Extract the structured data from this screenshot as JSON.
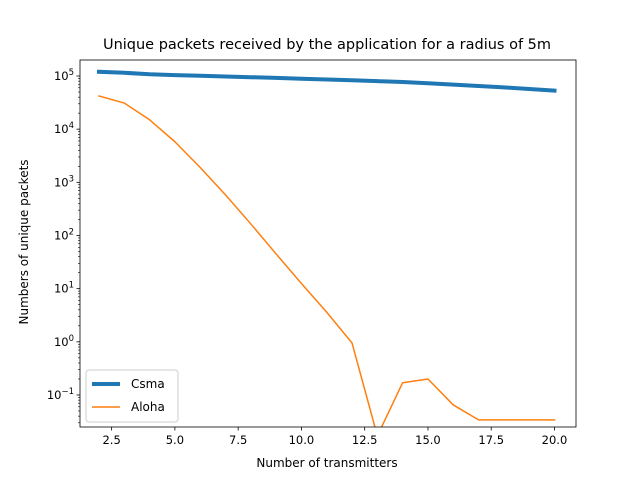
{
  "chart_data": {
    "type": "line",
    "title": "Unique packets received by the application for a radius of 5m",
    "xlabel": "Number of transmitters",
    "ylabel": "Numbers of unique packets",
    "xlim": [
      1.25,
      20.85
    ],
    "ylim": [
      0.025,
      200000
    ],
    "yscale": "log",
    "x_ticks": [
      2.5,
      5.0,
      7.5,
      10.0,
      12.5,
      15.0,
      17.5,
      20.0
    ],
    "x_tick_labels": [
      "2.5",
      "5.0",
      "7.5",
      "10.0",
      "12.5",
      "15.0",
      "17.5",
      "20.0"
    ],
    "y_ticks": [
      0.1,
      1,
      10,
      100,
      1000,
      10000,
      100000
    ],
    "y_tick_exponents": [
      "−1",
      "0",
      "1",
      "2",
      "3",
      "4",
      "5"
    ],
    "grid": false,
    "legend_position": "lower-left",
    "series": [
      {
        "name": "Csma",
        "color": "#1f77b4",
        "line_width": 4,
        "x": [
          2,
          3,
          4,
          5,
          6,
          7,
          8,
          9,
          10,
          11,
          12,
          13,
          14,
          15,
          16,
          17,
          18,
          19,
          20
        ],
        "y": [
          120000,
          115000,
          108000,
          104000,
          101000,
          98000,
          95000,
          92000,
          89000,
          86000,
          83000,
          80000,
          77000,
          73000,
          69000,
          65000,
          61000,
          57000,
          53000
        ]
      },
      {
        "name": "Aloha",
        "color": "#ff7f0e",
        "line_width": 1.5,
        "x": [
          2,
          3,
          4,
          5,
          6,
          7,
          8,
          9,
          10,
          11,
          12,
          13,
          14,
          15,
          16,
          17,
          18,
          19,
          20
        ],
        "y": [
          42000,
          31000,
          15000,
          5800,
          1900,
          580,
          165,
          45,
          12.5,
          3.6,
          0.95,
          0.017,
          0.17,
          0.2,
          0.065,
          0.034,
          0.034,
          0.034,
          0.034
        ]
      }
    ]
  }
}
